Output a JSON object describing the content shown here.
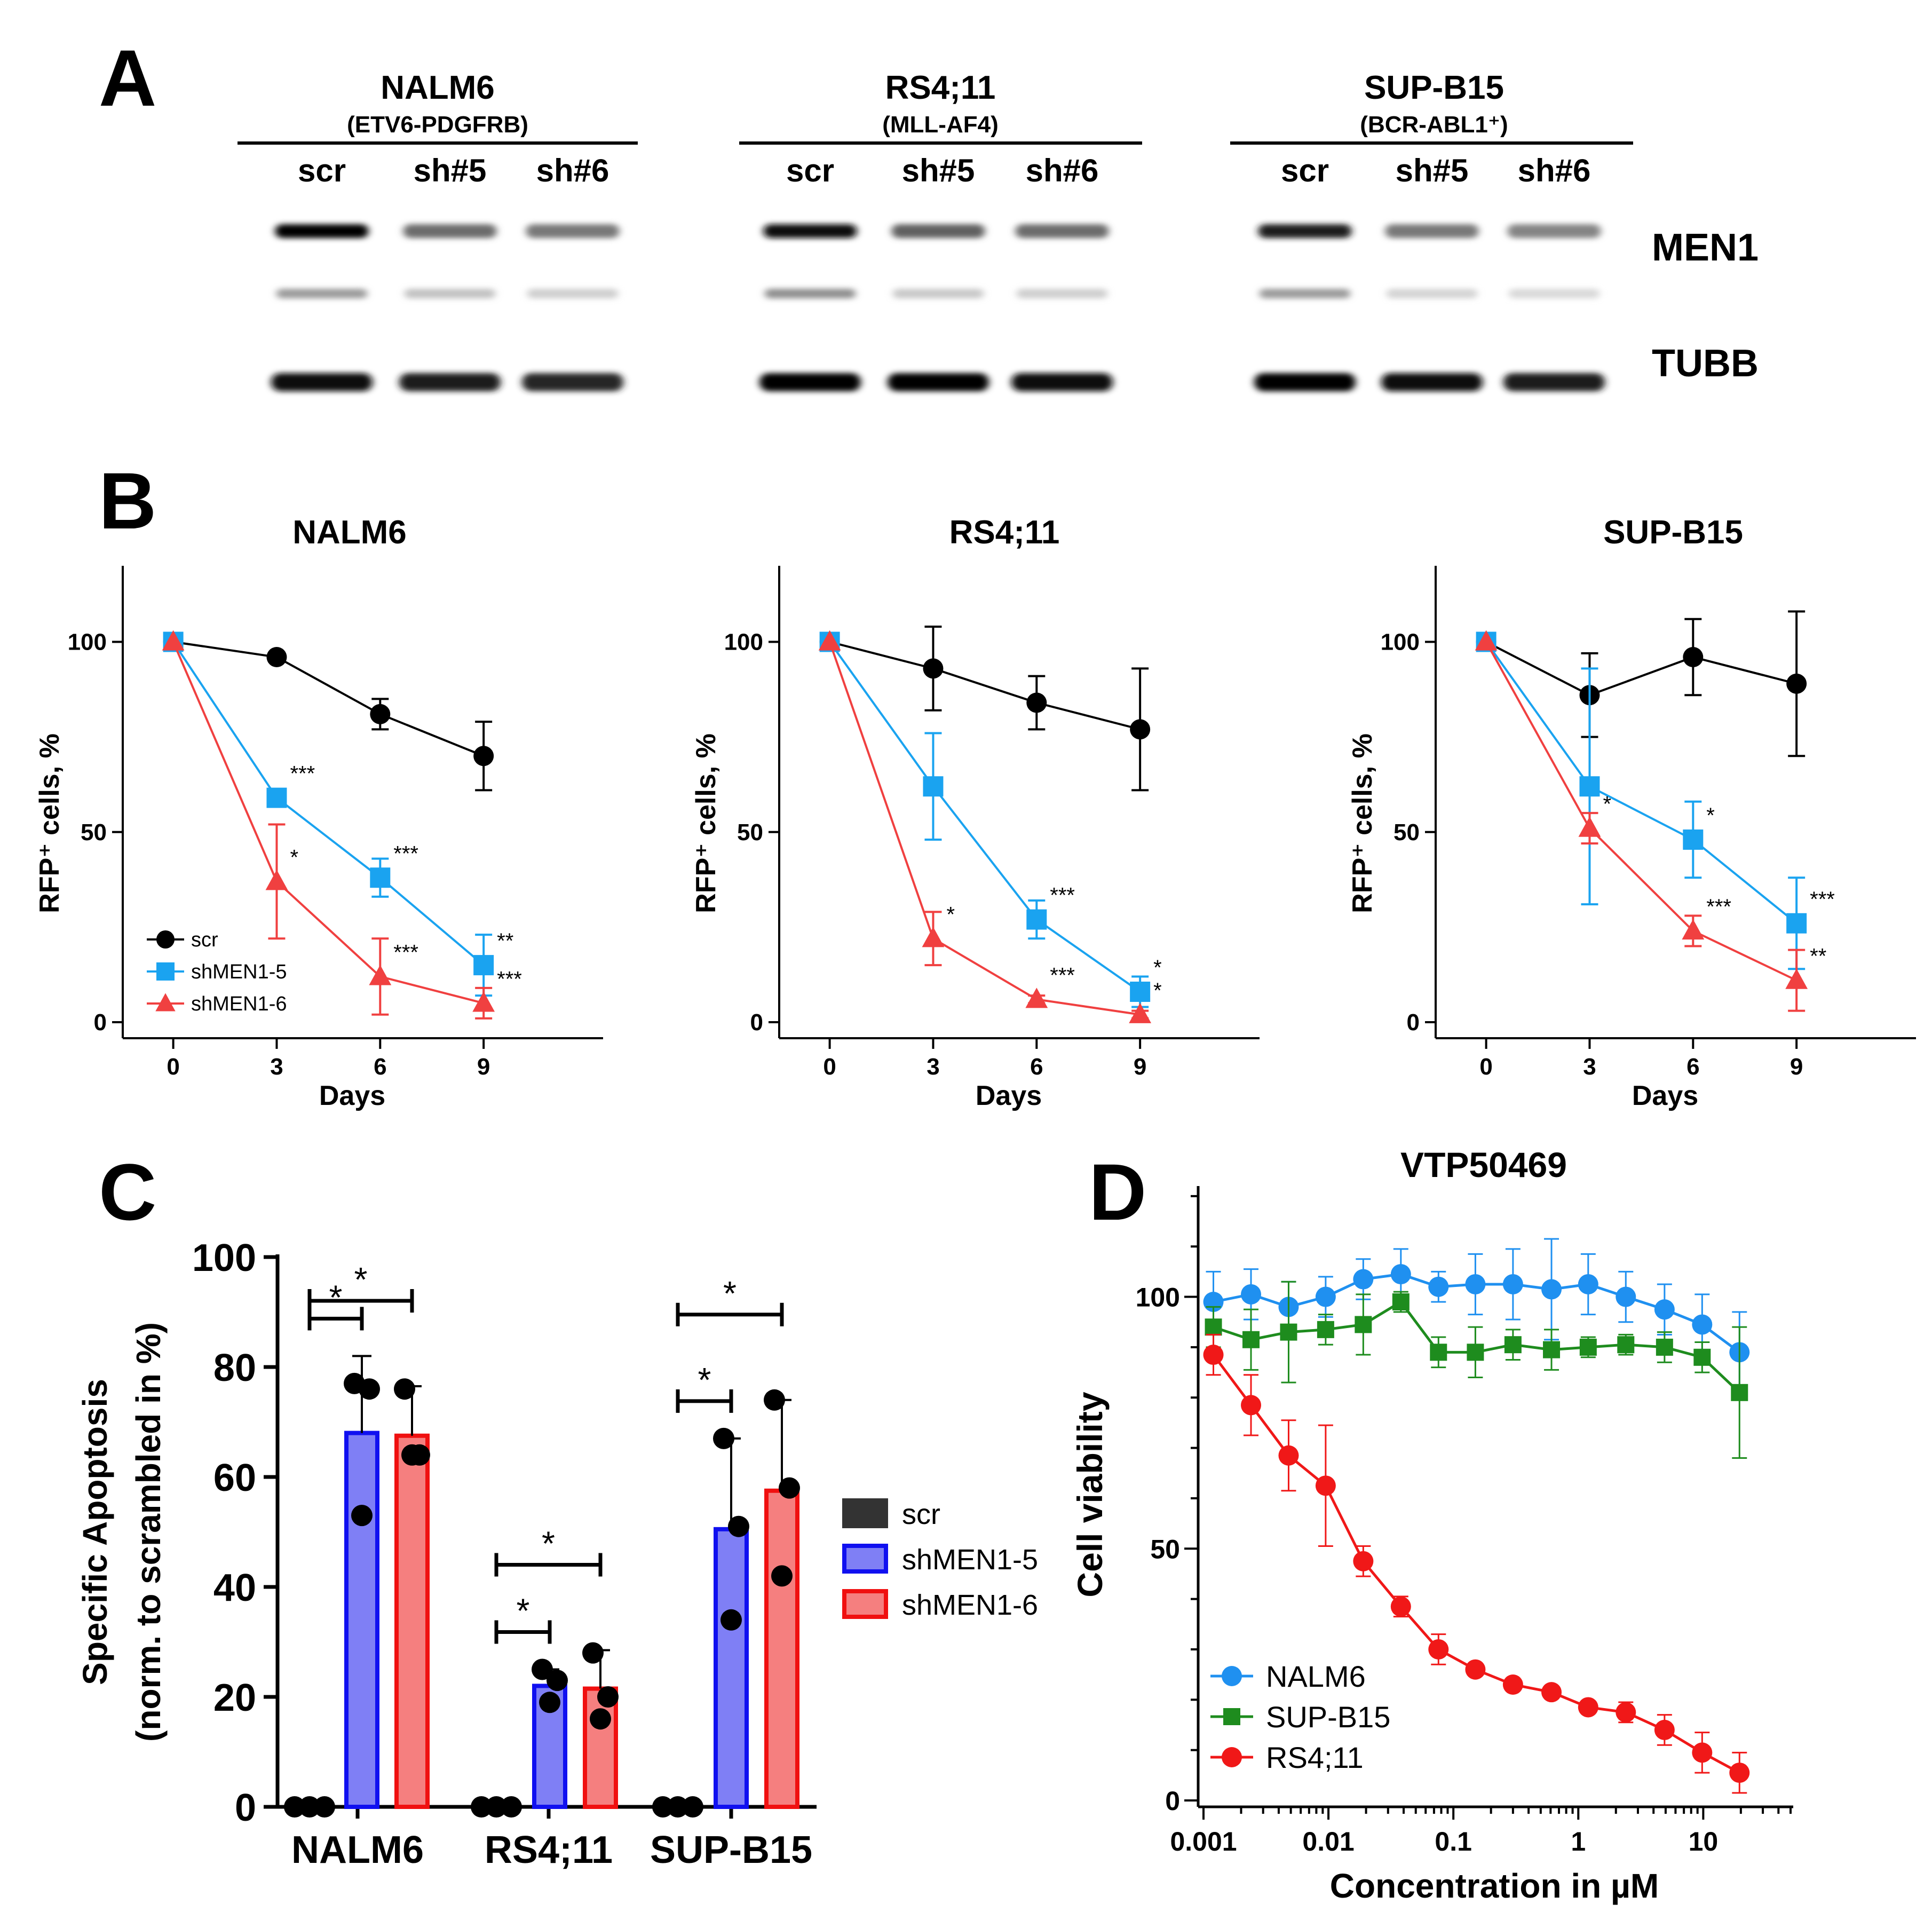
{
  "panels": {
    "a": "A",
    "b": "B",
    "c": "C",
    "d": "D"
  },
  "colors": {
    "scr": "#000000",
    "sh5": "#1aa3f0",
    "sh6": "#f04040",
    "bar_scr": "#333333",
    "bar_sh5": "#7f7ff5",
    "bar_sh5_edge": "#1010f0",
    "bar_sh6": "#f57f7f",
    "bar_sh6_edge": "#f01010",
    "nalm6": "#1f90f0",
    "supb15": "#1e8c1e",
    "rs411": "#f01818"
  },
  "blot": {
    "groups": [
      {
        "name": "NALM6",
        "sub": "(ETV6-PDGFRB)",
        "lanes": [
          "scr",
          "sh#5",
          "sh#6"
        ]
      },
      {
        "name": "RS4;11",
        "sub": "(MLL-AF4)",
        "lanes": [
          "scr",
          "sh#5",
          "sh#6"
        ]
      },
      {
        "name": "SUP-B15",
        "sub": "(BCR-ABL1⁺)",
        "lanes": [
          "scr",
          "sh#5",
          "sh#6"
        ]
      }
    ],
    "proteins": [
      "MEN1",
      "TUBB"
    ],
    "intensity": {
      "men1": [
        [
          1.0,
          0.55,
          0.5
        ],
        [
          0.95,
          0.6,
          0.55
        ],
        [
          0.9,
          0.5,
          0.45
        ]
      ],
      "men1_lower": [
        [
          0.35,
          0.18,
          0.12
        ],
        [
          0.4,
          0.15,
          0.12
        ],
        [
          0.35,
          0.1,
          0.08
        ]
      ],
      "tubb": [
        [
          0.95,
          0.9,
          0.85
        ],
        [
          1.0,
          1.0,
          0.95
        ],
        [
          1.0,
          0.95,
          0.9
        ]
      ]
    }
  },
  "chart_data": [
    {
      "type": "line",
      "panel": "B",
      "title": "NALM6",
      "xlabel": "Days",
      "ylabel": "RFP⁺ cells, %",
      "xlim": [
        -1,
        12
      ],
      "ylim": [
        0,
        120
      ],
      "xticks": [
        0,
        3,
        6,
        9
      ],
      "yticks": [
        0,
        50,
        100
      ],
      "legend": "bottom-left",
      "series": [
        {
          "name": "scr",
          "marker": "circle",
          "x": [
            0,
            3,
            6,
            9
          ],
          "y": [
            100,
            96,
            81,
            70
          ],
          "err": [
            0,
            1,
            4,
            9
          ],
          "sig": [
            "",
            "",
            "",
            ""
          ]
        },
        {
          "name": "shMEN1-5",
          "marker": "square",
          "x": [
            0,
            3,
            6,
            9
          ],
          "y": [
            100,
            59,
            38,
            15
          ],
          "err": [
            0,
            2,
            5,
            8
          ],
          "sig": [
            "",
            "***",
            "***",
            "**"
          ]
        },
        {
          "name": "shMEN1-6",
          "marker": "triangle",
          "x": [
            0,
            3,
            6,
            9
          ],
          "y": [
            100,
            37,
            12,
            5
          ],
          "err": [
            0,
            15,
            10,
            4
          ],
          "sig": [
            "",
            "*",
            "***",
            "***"
          ]
        }
      ]
    },
    {
      "type": "line",
      "panel": "B",
      "title": "RS4;11",
      "xlabel": "Days",
      "ylabel": "RFP⁺ cells, %",
      "xlim": [
        -1,
        12
      ],
      "ylim": [
        0,
        120
      ],
      "xticks": [
        0,
        3,
        6,
        9
      ],
      "yticks": [
        0,
        50,
        100
      ],
      "series": [
        {
          "name": "scr",
          "marker": "circle",
          "x": [
            0,
            3,
            6,
            9
          ],
          "y": [
            100,
            93,
            84,
            77
          ],
          "err": [
            0,
            11,
            7,
            16
          ],
          "sig": [
            "",
            "",
            "",
            ""
          ]
        },
        {
          "name": "shMEN1-5",
          "marker": "square",
          "x": [
            0,
            3,
            6,
            9
          ],
          "y": [
            100,
            62,
            27,
            8
          ],
          "err": [
            0,
            14,
            5,
            4
          ],
          "sig": [
            "",
            "",
            "***",
            "*"
          ]
        },
        {
          "name": "shMEN1-6",
          "marker": "triangle",
          "x": [
            0,
            3,
            6,
            9
          ],
          "y": [
            100,
            22,
            6,
            2
          ],
          "err": [
            0,
            7,
            1,
            1
          ],
          "sig": [
            "",
            "*",
            "***",
            "*"
          ]
        }
      ]
    },
    {
      "type": "line",
      "panel": "B",
      "title": "SUP-B15",
      "xlabel": "Days",
      "ylabel": "RFP⁺ cells, %",
      "xlim": [
        -1,
        12
      ],
      "ylim": [
        0,
        120
      ],
      "xticks": [
        0,
        3,
        6,
        9
      ],
      "yticks": [
        0,
        50,
        100
      ],
      "series": [
        {
          "name": "scr",
          "marker": "circle",
          "x": [
            0,
            3,
            6,
            9
          ],
          "y": [
            100,
            86,
            96,
            89
          ],
          "err": [
            0,
            11,
            10,
            19
          ],
          "sig": [
            "",
            "",
            "",
            ""
          ]
        },
        {
          "name": "shMEN1-5",
          "marker": "square",
          "x": [
            0,
            3,
            6,
            9
          ],
          "y": [
            100,
            62,
            48,
            26
          ],
          "err": [
            0,
            31,
            10,
            12
          ],
          "sig": [
            "",
            "",
            "*",
            "***"
          ]
        },
        {
          "name": "shMEN1-6",
          "marker": "triangle",
          "x": [
            0,
            3,
            6,
            9
          ],
          "y": [
            100,
            51,
            24,
            11
          ],
          "err": [
            0,
            4,
            4,
            8
          ],
          "sig": [
            "",
            "*",
            "***",
            "**"
          ]
        }
      ]
    },
    {
      "type": "bar",
      "panel": "C",
      "ylabel": "Specific Apoptosis",
      "ylabel2": "(norm. to scrambled in %)",
      "categories": [
        "NALM6",
        "RS4;11",
        "SUP-B15"
      ],
      "ylim": [
        0,
        100
      ],
      "yticks": [
        0,
        20,
        40,
        60,
        80,
        100
      ],
      "legend": "right",
      "series": [
        {
          "name": "scr",
          "values": [
            0,
            0,
            0
          ],
          "err": [
            0,
            0,
            0
          ],
          "points": [
            [
              0,
              0,
              0
            ],
            [
              0,
              0,
              0
            ],
            [
              0,
              0,
              0
            ]
          ]
        },
        {
          "name": "shMEN1-5",
          "values": [
            68,
            22,
            50.5
          ],
          "err": [
            14,
            3,
            16.5
          ],
          "points": [
            [
              77,
              76,
              53
            ],
            [
              25,
              23,
              19
            ],
            [
              67,
              51,
              34
            ]
          ]
        },
        {
          "name": "shMEN1-6",
          "values": [
            67.5,
            21.5,
            57.5
          ],
          "err": [
            9,
            7,
            16.5
          ],
          "points": [
            [
              76,
              64,
              64
            ],
            [
              28,
              20,
              16
            ],
            [
              74,
              58,
              42
            ]
          ]
        }
      ],
      "significance": [
        {
          "group": 0,
          "from": 0,
          "to": 1,
          "level": 1,
          "label": "*"
        },
        {
          "group": 0,
          "from": 0,
          "to": 2,
          "level": 2,
          "label": "*"
        },
        {
          "group": 1,
          "from": 0,
          "to": 1,
          "level": 1,
          "label": "*"
        },
        {
          "group": 1,
          "from": 0,
          "to": 2,
          "level": 2,
          "label": "*"
        },
        {
          "group": 2,
          "from": 0,
          "to": 1,
          "level": 1,
          "label": "*"
        },
        {
          "group": 2,
          "from": 0,
          "to": 2,
          "level": 2,
          "label": "*"
        }
      ]
    },
    {
      "type": "line",
      "panel": "D",
      "title": "VTP50469",
      "xlabel": "Concentration in µM",
      "ylabel": "Cell viability",
      "xscale": "log",
      "xlim": [
        0.001,
        50
      ],
      "ylim": [
        0,
        122
      ],
      "xticks": [
        "0.001",
        "0.01",
        "0.1",
        "1",
        "10"
      ],
      "yticks": [
        0,
        50,
        100
      ],
      "legend": "bottom-left",
      "x": [
        0.0012,
        0.0024,
        0.0048,
        0.0095,
        0.019,
        0.038,
        0.076,
        0.15,
        0.3,
        0.61,
        1.2,
        2.4,
        4.9,
        9.8,
        19.5
      ],
      "series": [
        {
          "name": "NALM6",
          "marker": "circle",
          "y": [
            99,
            100.5,
            98,
            100,
            103.5,
            104.5,
            102,
            102.5,
            102.5,
            101.5,
            102.5,
            100,
            97.5,
            94.5,
            89
          ],
          "err": [
            6,
            5,
            5,
            4,
            4,
            5,
            3,
            6,
            7,
            10,
            6,
            5,
            5,
            6,
            8
          ]
        },
        {
          "name": "SUP-B15",
          "marker": "square",
          "y": [
            94,
            91.5,
            93,
            93.5,
            94.5,
            99,
            89,
            89,
            90.5,
            89.5,
            90,
            90.5,
            90,
            88,
            81
          ],
          "err": [
            4,
            6,
            10,
            3,
            6,
            2,
            3,
            5,
            3,
            4,
            2,
            2,
            3,
            3,
            13
          ]
        },
        {
          "name": "RS4;11",
          "marker": "circle",
          "y": [
            88.5,
            78.5,
            68.5,
            62.5,
            47.5,
            38.5,
            30,
            26,
            23,
            21.5,
            18.5,
            17.5,
            14,
            9.5,
            5.5
          ],
          "err": [
            4,
            6,
            7,
            12,
            3,
            2,
            3,
            1,
            1,
            1,
            1,
            2,
            3,
            4,
            4
          ]
        }
      ]
    }
  ]
}
